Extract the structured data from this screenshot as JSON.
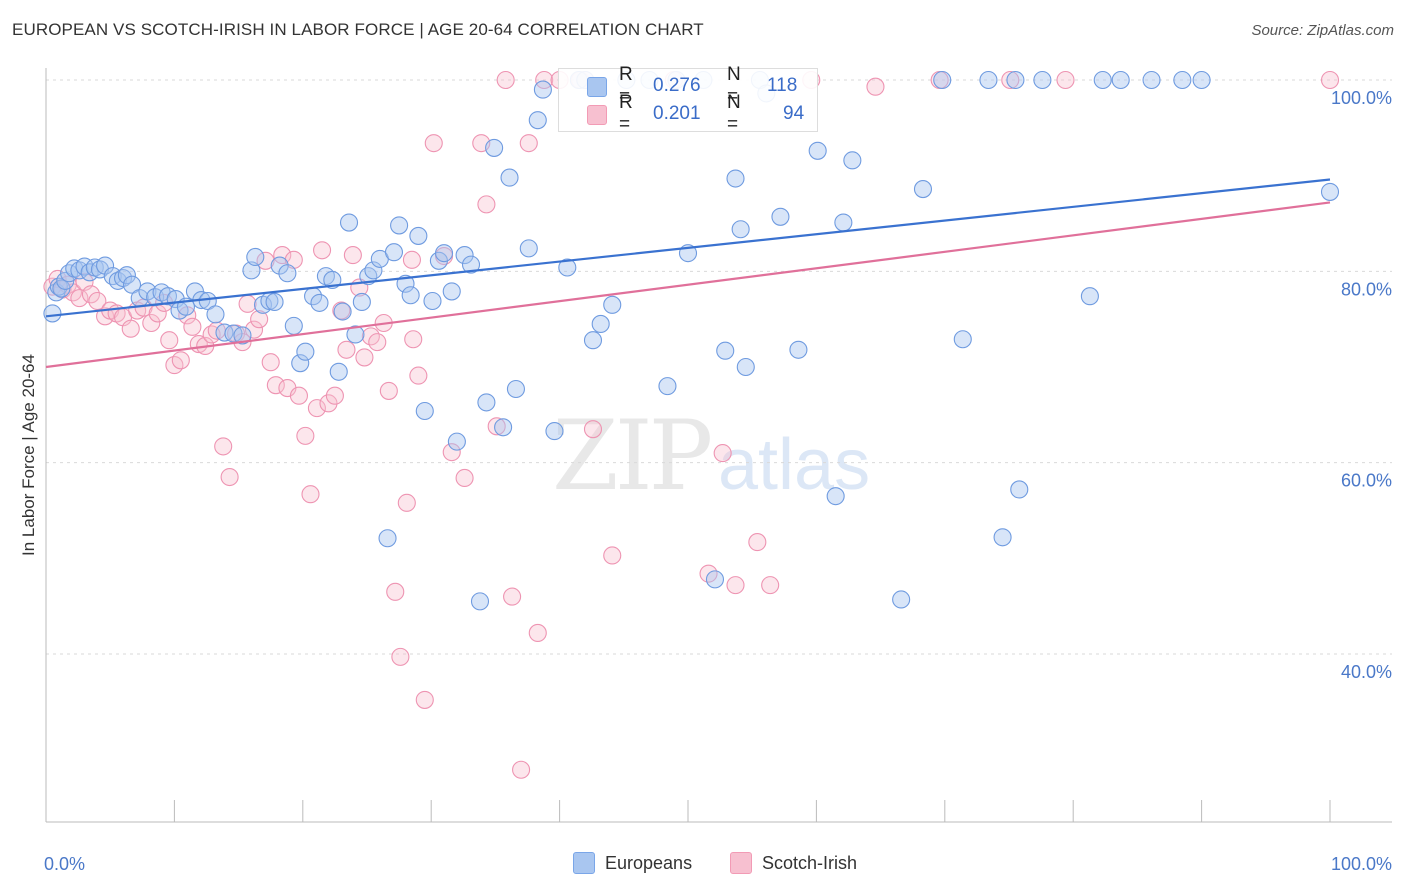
{
  "title": "EUROPEAN VS SCOTCH-IRISH IN LABOR FORCE | AGE 20-64 CORRELATION CHART",
  "source": "Source: ZipAtlas.com",
  "watermark": {
    "part1": "ZIP",
    "part2": "atlas"
  },
  "legend": {
    "r_label": "R =",
    "n_label": "N =",
    "rows": [
      {
        "r": "0.276",
        "n": "118",
        "color": "#7aa6e8"
      },
      {
        "r": "0.201",
        "n": "94",
        "color": "#f29bb5"
      }
    ]
  },
  "bottom_legend": [
    {
      "label": "Europeans",
      "color": "#a9c6f0"
    },
    {
      "label": "Scotch-Irish",
      "color": "#f7c0d0"
    }
  ],
  "chart_data": {
    "type": "scatter",
    "xlabel": "",
    "ylabel": "In Labor Force | Age 20-64",
    "xlim": [
      0,
      100
    ],
    "ylim": [
      22,
      103
    ],
    "x_tick_labels": [
      {
        "value": 0,
        "label": "0.0%"
      },
      {
        "value": 100,
        "label": "100.0%"
      }
    ],
    "y_tick_labels": [
      {
        "value": 40,
        "label": "40.0%"
      },
      {
        "value": 60,
        "label": "60.0%"
      },
      {
        "value": 80,
        "label": "80.0%"
      },
      {
        "value": 100,
        "label": "100.0%"
      }
    ],
    "colors": {
      "europeans": "#3a72d0",
      "scotch_irish": "#e0709a"
    },
    "series": [
      {
        "name": "Europeans",
        "trend": {
          "x": [
            0,
            100
          ],
          "y": [
            75.3,
            89.6
          ]
        },
        "points": [
          [
            0.5,
            75.6
          ],
          [
            0.8,
            77.8
          ],
          [
            1.0,
            78.4
          ],
          [
            1.2,
            78.2
          ],
          [
            1.5,
            79.0
          ],
          [
            1.8,
            79.8
          ],
          [
            2.2,
            80.3
          ],
          [
            2.6,
            80.1
          ],
          [
            3.0,
            80.5
          ],
          [
            3.4,
            79.9
          ],
          [
            3.8,
            80.4
          ],
          [
            4.2,
            80.2
          ],
          [
            4.6,
            80.6
          ],
          [
            5.2,
            79.5
          ],
          [
            5.6,
            79.0
          ],
          [
            6.0,
            79.3
          ],
          [
            6.3,
            79.6
          ],
          [
            6.7,
            78.6
          ],
          [
            7.3,
            77.2
          ],
          [
            7.9,
            77.9
          ],
          [
            8.5,
            77.3
          ],
          [
            9.0,
            77.8
          ],
          [
            9.5,
            77.4
          ],
          [
            10.1,
            77.1
          ],
          [
            10.4,
            75.9
          ],
          [
            10.9,
            76.3
          ],
          [
            11.6,
            77.9
          ],
          [
            12.1,
            77.0
          ],
          [
            12.6,
            76.9
          ],
          [
            13.2,
            75.5
          ],
          [
            13.9,
            73.6
          ],
          [
            14.6,
            73.5
          ],
          [
            15.3,
            73.3
          ],
          [
            16.0,
            80.1
          ],
          [
            16.3,
            81.5
          ],
          [
            16.9,
            76.5
          ],
          [
            17.4,
            76.9
          ],
          [
            17.8,
            76.8
          ],
          [
            18.2,
            80.6
          ],
          [
            18.8,
            79.8
          ],
          [
            19.3,
            74.3
          ],
          [
            19.8,
            70.4
          ],
          [
            20.2,
            71.6
          ],
          [
            20.8,
            77.4
          ],
          [
            21.3,
            76.7
          ],
          [
            21.8,
            79.5
          ],
          [
            22.3,
            79.1
          ],
          [
            22.8,
            69.5
          ],
          [
            23.1,
            75.8
          ],
          [
            23.6,
            85.1
          ],
          [
            24.1,
            73.4
          ],
          [
            24.6,
            76.8
          ],
          [
            25.1,
            79.5
          ],
          [
            25.5,
            80.1
          ],
          [
            26.0,
            81.3
          ],
          [
            26.6,
            52.1
          ],
          [
            27.1,
            82.0
          ],
          [
            27.5,
            84.8
          ],
          [
            28.0,
            78.7
          ],
          [
            28.4,
            77.5
          ],
          [
            29.0,
            83.7
          ],
          [
            29.5,
            65.4
          ],
          [
            30.1,
            76.9
          ],
          [
            30.6,
            81.1
          ],
          [
            31.0,
            81.9
          ],
          [
            31.6,
            77.9
          ],
          [
            32.0,
            62.2
          ],
          [
            32.6,
            81.7
          ],
          [
            33.1,
            80.7
          ],
          [
            33.8,
            45.5
          ],
          [
            34.3,
            66.3
          ],
          [
            34.9,
            92.9
          ],
          [
            35.6,
            63.7
          ],
          [
            36.1,
            89.8
          ],
          [
            36.6,
            67.7
          ],
          [
            37.6,
            82.4
          ],
          [
            38.3,
            95.8
          ],
          [
            38.7,
            99.0
          ],
          [
            39.6,
            63.3
          ],
          [
            40.6,
            80.4
          ],
          [
            41.5,
            100.0
          ],
          [
            42.0,
            100.0
          ],
          [
            42.6,
            72.8
          ],
          [
            43.2,
            74.5
          ],
          [
            44.1,
            76.5
          ],
          [
            45.2,
            100.0
          ],
          [
            47.0,
            100.0
          ],
          [
            48.4,
            68.0
          ],
          [
            49.1,
            100.0
          ],
          [
            50.0,
            81.9
          ],
          [
            51.2,
            100.0
          ],
          [
            52.1,
            47.8
          ],
          [
            52.9,
            71.7
          ],
          [
            53.7,
            89.7
          ],
          [
            54.1,
            84.4
          ],
          [
            54.5,
            70.0
          ],
          [
            55.6,
            100.0
          ],
          [
            56.1,
            98.6
          ],
          [
            57.2,
            85.7
          ],
          [
            58.6,
            71.8
          ],
          [
            60.1,
            92.6
          ],
          [
            61.5,
            56.5
          ],
          [
            62.1,
            85.1
          ],
          [
            62.8,
            91.6
          ],
          [
            66.6,
            45.7
          ],
          [
            68.3,
            88.6
          ],
          [
            69.8,
            100.0
          ],
          [
            71.4,
            72.9
          ],
          [
            73.4,
            100.0
          ],
          [
            74.5,
            52.2
          ],
          [
            75.5,
            100.0
          ],
          [
            75.8,
            57.2
          ],
          [
            77.6,
            100.0
          ],
          [
            81.3,
            77.4
          ],
          [
            82.3,
            100.0
          ],
          [
            83.7,
            100.0
          ],
          [
            86.1,
            100.0
          ],
          [
            88.5,
            100.0
          ],
          [
            100.0,
            88.3
          ],
          [
            90.0,
            100.0
          ]
        ]
      },
      {
        "name": "Scotch-Irish",
        "trend": {
          "x": [
            0,
            100
          ],
          "y": [
            70.0,
            87.2
          ]
        },
        "points": [
          [
            0.5,
            78.4
          ],
          [
            0.9,
            79.2
          ],
          [
            1.3,
            78.1
          ],
          [
            1.7,
            78.6
          ],
          [
            2.1,
            77.8
          ],
          [
            2.6,
            77.2
          ],
          [
            3.0,
            78.9
          ],
          [
            3.5,
            77.6
          ],
          [
            4.0,
            76.9
          ],
          [
            4.6,
            75.3
          ],
          [
            5.0,
            75.9
          ],
          [
            5.5,
            75.6
          ],
          [
            6.0,
            75.2
          ],
          [
            6.6,
            74.0
          ],
          [
            7.1,
            75.9
          ],
          [
            7.6,
            76.2
          ],
          [
            8.2,
            74.6
          ],
          [
            8.7,
            75.6
          ],
          [
            9.2,
            76.7
          ],
          [
            9.6,
            72.8
          ],
          [
            10.0,
            70.2
          ],
          [
            10.5,
            70.7
          ],
          [
            11.0,
            75.4
          ],
          [
            11.4,
            74.2
          ],
          [
            11.9,
            72.4
          ],
          [
            12.4,
            72.2
          ],
          [
            12.9,
            73.4
          ],
          [
            13.3,
            73.8
          ],
          [
            13.8,
            61.7
          ],
          [
            14.3,
            58.5
          ],
          [
            14.8,
            73.5
          ],
          [
            15.3,
            72.6
          ],
          [
            15.7,
            76.6
          ],
          [
            16.2,
            73.9
          ],
          [
            16.6,
            75.0
          ],
          [
            17.1,
            81.1
          ],
          [
            17.5,
            70.5
          ],
          [
            17.9,
            68.1
          ],
          [
            18.4,
            81.7
          ],
          [
            18.8,
            67.8
          ],
          [
            19.3,
            81.2
          ],
          [
            19.7,
            67.0
          ],
          [
            20.2,
            62.8
          ],
          [
            20.6,
            56.7
          ],
          [
            21.1,
            65.7
          ],
          [
            21.5,
            82.2
          ],
          [
            22.0,
            66.2
          ],
          [
            22.5,
            67.0
          ],
          [
            23.0,
            75.9
          ],
          [
            23.4,
            71.8
          ],
          [
            23.9,
            81.7
          ],
          [
            24.4,
            78.3
          ],
          [
            24.8,
            71.0
          ],
          [
            25.3,
            73.2
          ],
          [
            25.8,
            72.6
          ],
          [
            26.3,
            74.6
          ],
          [
            26.7,
            67.5
          ],
          [
            27.2,
            46.5
          ],
          [
            27.6,
            39.7
          ],
          [
            28.1,
            55.8
          ],
          [
            28.6,
            72.9
          ],
          [
            29.0,
            69.1
          ],
          [
            29.5,
            35.2
          ],
          [
            30.2,
            93.4
          ],
          [
            31.6,
            61.1
          ],
          [
            32.6,
            58.4
          ],
          [
            33.9,
            93.4
          ],
          [
            34.3,
            87.0
          ],
          [
            35.1,
            63.8
          ],
          [
            35.8,
            100.0
          ],
          [
            36.3,
            46.0
          ],
          [
            37.6,
            93.4
          ],
          [
            38.3,
            42.2
          ],
          [
            38.8,
            100.0
          ],
          [
            40.0,
            100.0
          ],
          [
            41.6,
            100.0
          ],
          [
            42.6,
            63.5
          ],
          [
            44.1,
            50.3
          ],
          [
            48.9,
            100.0
          ],
          [
            51.6,
            48.4
          ],
          [
            52.7,
            61.0
          ],
          [
            53.7,
            47.2
          ],
          [
            55.4,
            51.7
          ],
          [
            56.4,
            47.2
          ],
          [
            59.6,
            100.0
          ],
          [
            64.6,
            99.3
          ],
          [
            69.6,
            100.0
          ],
          [
            75.1,
            100.0
          ],
          [
            79.4,
            100.0
          ],
          [
            100.0,
            100.0
          ],
          [
            37.0,
            27.9
          ],
          [
            31.0,
            81.6
          ],
          [
            42.0,
            100.0
          ],
          [
            28.5,
            81.2
          ]
        ]
      }
    ]
  }
}
